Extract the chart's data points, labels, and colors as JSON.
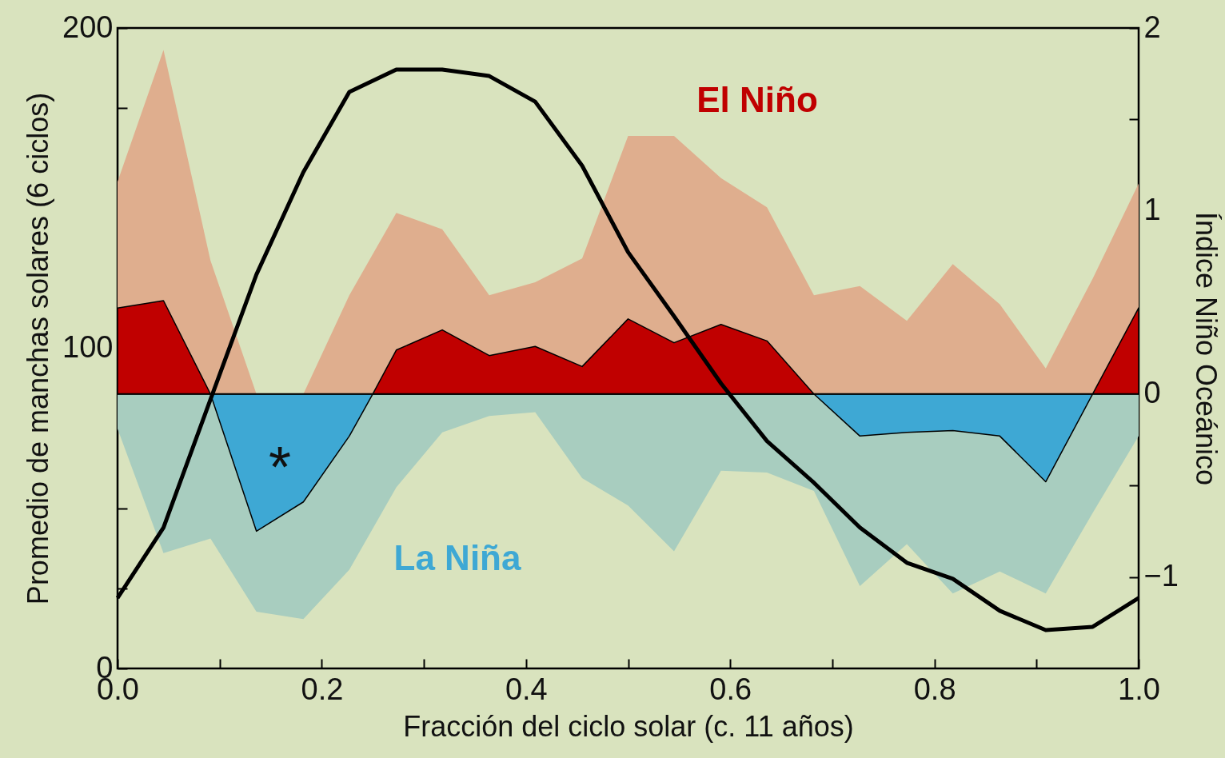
{
  "chart_data": {
    "type": "area",
    "xlabel": "Fracción del ciclo solar (c. 11 años)",
    "ylabel": "Promedio de manchas solares (6 ciclos)",
    "y2label": "Índice Niño Oceánico",
    "annotations": [
      "*"
    ],
    "x": [
      0,
      0.045,
      0.091,
      0.136,
      0.182,
      0.227,
      0.273,
      0.318,
      0.364,
      0.409,
      0.455,
      0.5,
      0.545,
      0.591,
      0.636,
      0.682,
      0.727,
      0.773,
      0.818,
      0.864,
      0.909,
      0.955,
      1.0
    ],
    "xlim": [
      0,
      1
    ],
    "xticks": [
      {
        "value": 0,
        "label": "0.0"
      },
      {
        "value": 0.1,
        "label": null
      },
      {
        "value": 0.2,
        "label": "0.2"
      },
      {
        "value": 0.3,
        "label": null
      },
      {
        "value": 0.4,
        "label": "0.4"
      },
      {
        "value": 0.5,
        "label": null
      },
      {
        "value": 0.6,
        "label": "0.6"
      },
      {
        "value": 0.7,
        "label": null
      },
      {
        "value": 0.8,
        "label": "0.8"
      },
      {
        "value": 0.9,
        "label": null
      },
      {
        "value": 1,
        "label": "1.0"
      }
    ],
    "ylim": [
      0,
      200
    ],
    "yticks": [
      0,
      {
        "value": 25,
        "label": null
      },
      {
        "value": 50,
        "label": null
      },
      {
        "value": 75,
        "label": null
      },
      100,
      {
        "value": 125,
        "label": null
      },
      {
        "value": 150,
        "label": null
      },
      {
        "value": 175,
        "label": null
      },
      200
    ],
    "y2lim": [
      -1.5,
      2
    ],
    "y2ticks": [
      {
        "value": -1,
        "label": "−1"
      },
      {
        "value": -0.5,
        "label": null
      },
      0,
      {
        "value": 0.5,
        "label": null
      },
      1,
      {
        "value": 1.5,
        "label": null
      },
      2
    ],
    "grid": false,
    "ref_lines": [
      {
        "axis": "y2",
        "value": 0,
        "color": "#000000"
      }
    ],
    "series": [
      {
        "axis": "y2",
        "color": "#dfae8e",
        "values": [
          1.16,
          1.88,
          0.73,
          0,
          0,
          0.54,
          0.99,
          0.9,
          0.54,
          0.61,
          0.74,
          1.41,
          1.41,
          1.18,
          1.02,
          0.54,
          0.59,
          0.4,
          0.71,
          0.49,
          0.14,
          0.63,
          1.15
        ]
      },
      {
        "axis": "y2",
        "color": "#a8cdbf",
        "values": [
          -0.19,
          -0.87,
          -0.79,
          -1.19,
          -1.23,
          -0.96,
          -0.51,
          -0.21,
          -0.12,
          -0.1,
          -0.46,
          -0.61,
          -0.86,
          -0.42,
          -0.43,
          -0.53,
          -1.05,
          -0.82,
          -1.09,
          -0.97,
          -1.09,
          -0.65,
          -0.23
        ]
      },
      {
        "axis": "y2",
        "name": "El Niño",
        "color": "#c00000",
        "x": [
          0,
          0.045,
          0.091,
          0.25,
          0.273,
          0.318,
          0.364,
          0.409,
          0.455,
          0.5,
          0.545,
          0.591,
          0.636,
          0.682,
          0.955,
          1.0
        ],
        "values": [
          0.47,
          0.51,
          0,
          0,
          0.24,
          0.35,
          0.21,
          0.26,
          0.15,
          0.41,
          0.28,
          0.38,
          0.29,
          0,
          0,
          0.47
        ]
      },
      {
        "axis": "y2",
        "name": "La Niña",
        "color": "#3ea8d4",
        "x": [
          0.091,
          0.136,
          0.182,
          0.227,
          0.25,
          0.682,
          0.727,
          0.773,
          0.818,
          0.864,
          0.909,
          0.955
        ],
        "values": [
          0,
          -0.75,
          -0.59,
          -0.23,
          0,
          0,
          -0.23,
          -0.21,
          -0.2,
          -0.23,
          -0.48,
          0
        ]
      },
      {
        "type": "line",
        "axis": "y",
        "color": "#000000",
        "values": [
          22,
          44,
          84,
          123,
          155,
          180,
          187,
          187,
          185,
          177,
          157,
          130,
          110,
          89,
          71,
          58,
          44,
          33,
          28,
          18,
          12,
          13,
          22
        ]
      }
    ]
  }
}
